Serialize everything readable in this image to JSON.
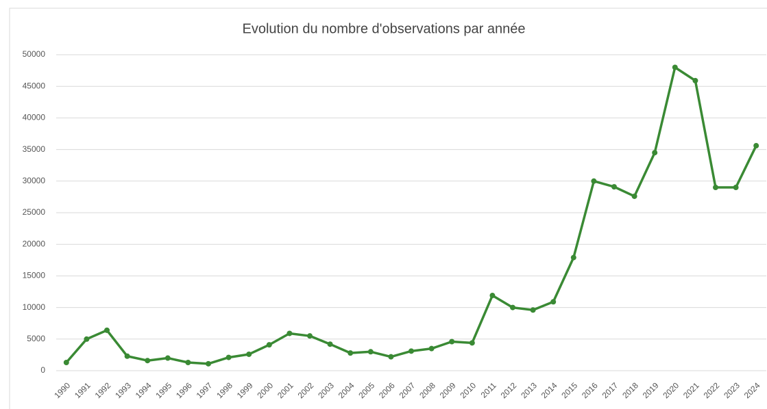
{
  "chart_data": {
    "type": "line",
    "title": "Evolution du nombre d'observations par année",
    "categories": [
      "1990",
      "1991",
      "1992",
      "1993",
      "1994",
      "1995",
      "1996",
      "1997",
      "1998",
      "1999",
      "2000",
      "2001",
      "2002",
      "2003",
      "2004",
      "2005",
      "2006",
      "2007",
      "2008",
      "2009",
      "2010",
      "2011",
      "2012",
      "2013",
      "2014",
      "2015",
      "2016",
      "2017",
      "2018",
      "2019",
      "2020",
      "2021",
      "2022",
      "2023",
      "2024"
    ],
    "series": [
      {
        "name": "Observations",
        "color": "#3a8a34",
        "values": [
          1300,
          5000,
          6400,
          2300,
          1600,
          2000,
          1300,
          1100,
          2100,
          2600,
          4100,
          5900,
          5500,
          4200,
          2800,
          3000,
          2200,
          3100,
          3500,
          4600,
          4400,
          11900,
          10000,
          9600,
          10900,
          17900,
          30000,
          29100,
          27600,
          34500,
          48000,
          45900,
          29000,
          29000,
          35600
        ]
      }
    ],
    "ylim": [
      0,
      50000
    ],
    "yticks": [
      0,
      5000,
      10000,
      15000,
      20000,
      25000,
      30000,
      35000,
      40000,
      45000,
      50000
    ],
    "grid": true
  }
}
